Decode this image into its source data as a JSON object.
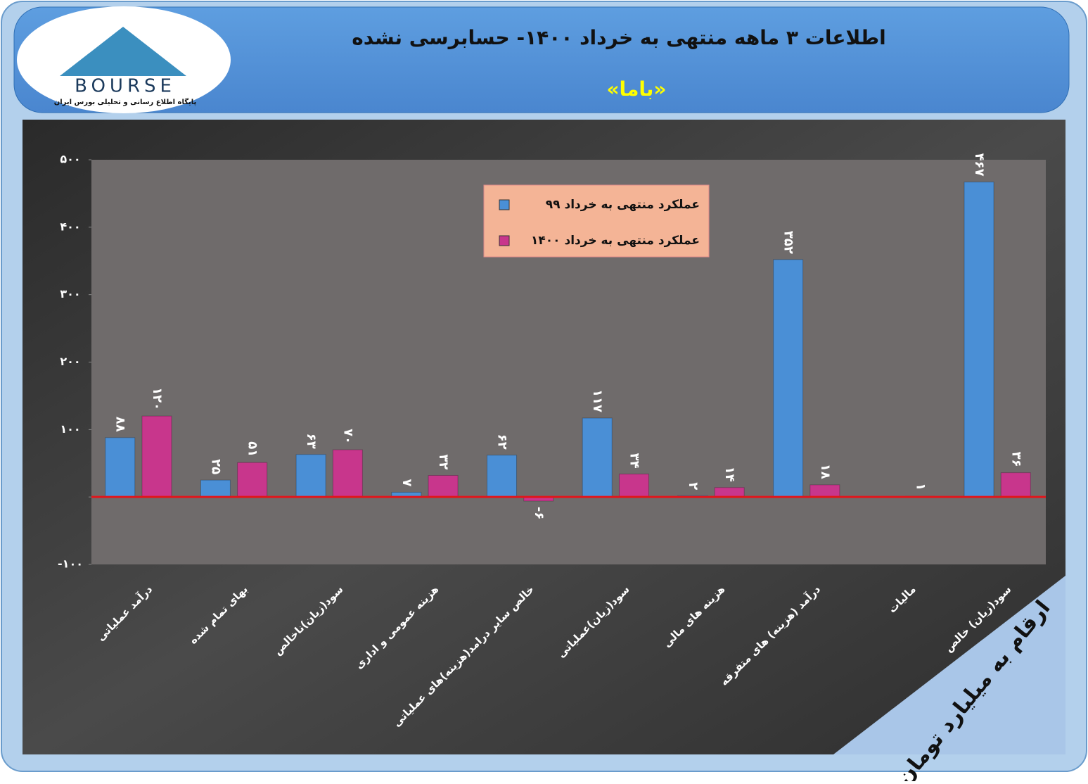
{
  "logo": {
    "name": "BOURSE",
    "tagline": "پایگاه اطلاع رسانی و تحلیلی بورس ایران"
  },
  "chart_data": {
    "type": "bar",
    "title": "اطلاعات ۳ ماهه منتهی به خرداد ۱۴۰۰- حسابرسی نشده",
    "subtitle": "«باما»",
    "note": "ارقام به میلیارد تومان",
    "categories": [
      "درآمد عملیاتی",
      "بهای تمام شده",
      "سود(زیان)ناخالص",
      "هزینه عمومی و اداری",
      "خالص سایر درامد(هزینه)های عملیاتی",
      "سود(زیان)عملیاتی",
      "هزینه های مالی",
      "درآمد (هزینه) های متفرقه",
      "مالیات",
      "سود(زیان) خالص"
    ],
    "series": [
      {
        "name": "عملکرد منتهی به خرداد ۹۹",
        "color": "#4a8fd6",
        "values": [
          88,
          25,
          63,
          7,
          62,
          117,
          2,
          352,
          null,
          467
        ],
        "value_labels": [
          "۸۸",
          "۲۵",
          "۶۳",
          "۷",
          "۶۲",
          "۱۱۷",
          "۲",
          "۳۵۲",
          null,
          "۴۶۷"
        ]
      },
      {
        "name": "عملکرد منتهی به خرداد ۱۴۰۰",
        "color": "#c8368c",
        "values": [
          120,
          51,
          70,
          32,
          -6,
          34,
          14,
          18,
          1,
          36
        ],
        "value_labels": [
          "۱۲۰",
          "۵۱",
          "۷۰",
          "۳۲",
          "-۶",
          "۳۴",
          "۱۴",
          "۱۸",
          "۱",
          "۳۶"
        ]
      }
    ],
    "ylim": [
      -100,
      500
    ],
    "yticks": [
      {
        "value": -100,
        "label": "-۱۰۰"
      },
      {
        "value": 0,
        "label": ""
      },
      {
        "value": 100,
        "label": "۱۰۰"
      },
      {
        "value": 200,
        "label": "۲۰۰"
      },
      {
        "value": 300,
        "label": "۳۰۰"
      },
      {
        "value": 400,
        "label": "۴۰۰"
      },
      {
        "value": 500,
        "label": "۵۰۰"
      }
    ],
    "grid": false,
    "zero_line_color": "#e0161c"
  }
}
